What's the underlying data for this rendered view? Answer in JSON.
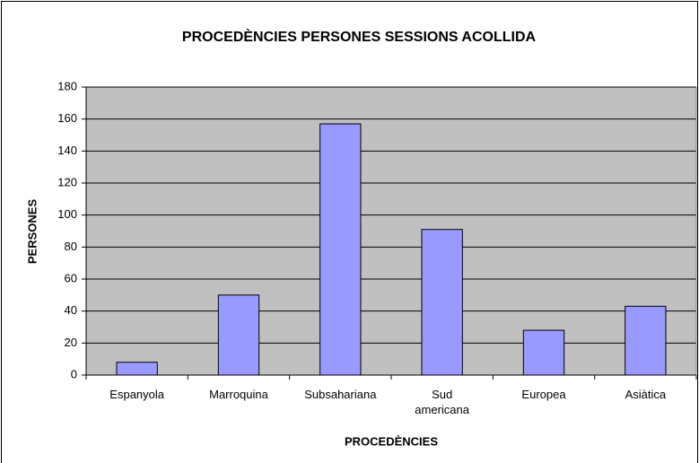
{
  "chart_data": {
    "type": "bar",
    "title": "PROCEDÈNCIES PERSONES SESSIONS ACOLLIDA",
    "x_label": "PROCEDÈNCIES",
    "y_label": "PERSONES",
    "categories": [
      "Espanyola",
      "Marroquina",
      "Subsahariana",
      "Sud americana",
      "Europea",
      "Asiàtica"
    ],
    "values": [
      8,
      50,
      157,
      91,
      28,
      43
    ],
    "color": "#9999ff",
    "ylim": [
      0,
      180
    ],
    "yticks": [
      0,
      20,
      40,
      60,
      80,
      100,
      120,
      140,
      160,
      180
    ],
    "grid": true
  }
}
